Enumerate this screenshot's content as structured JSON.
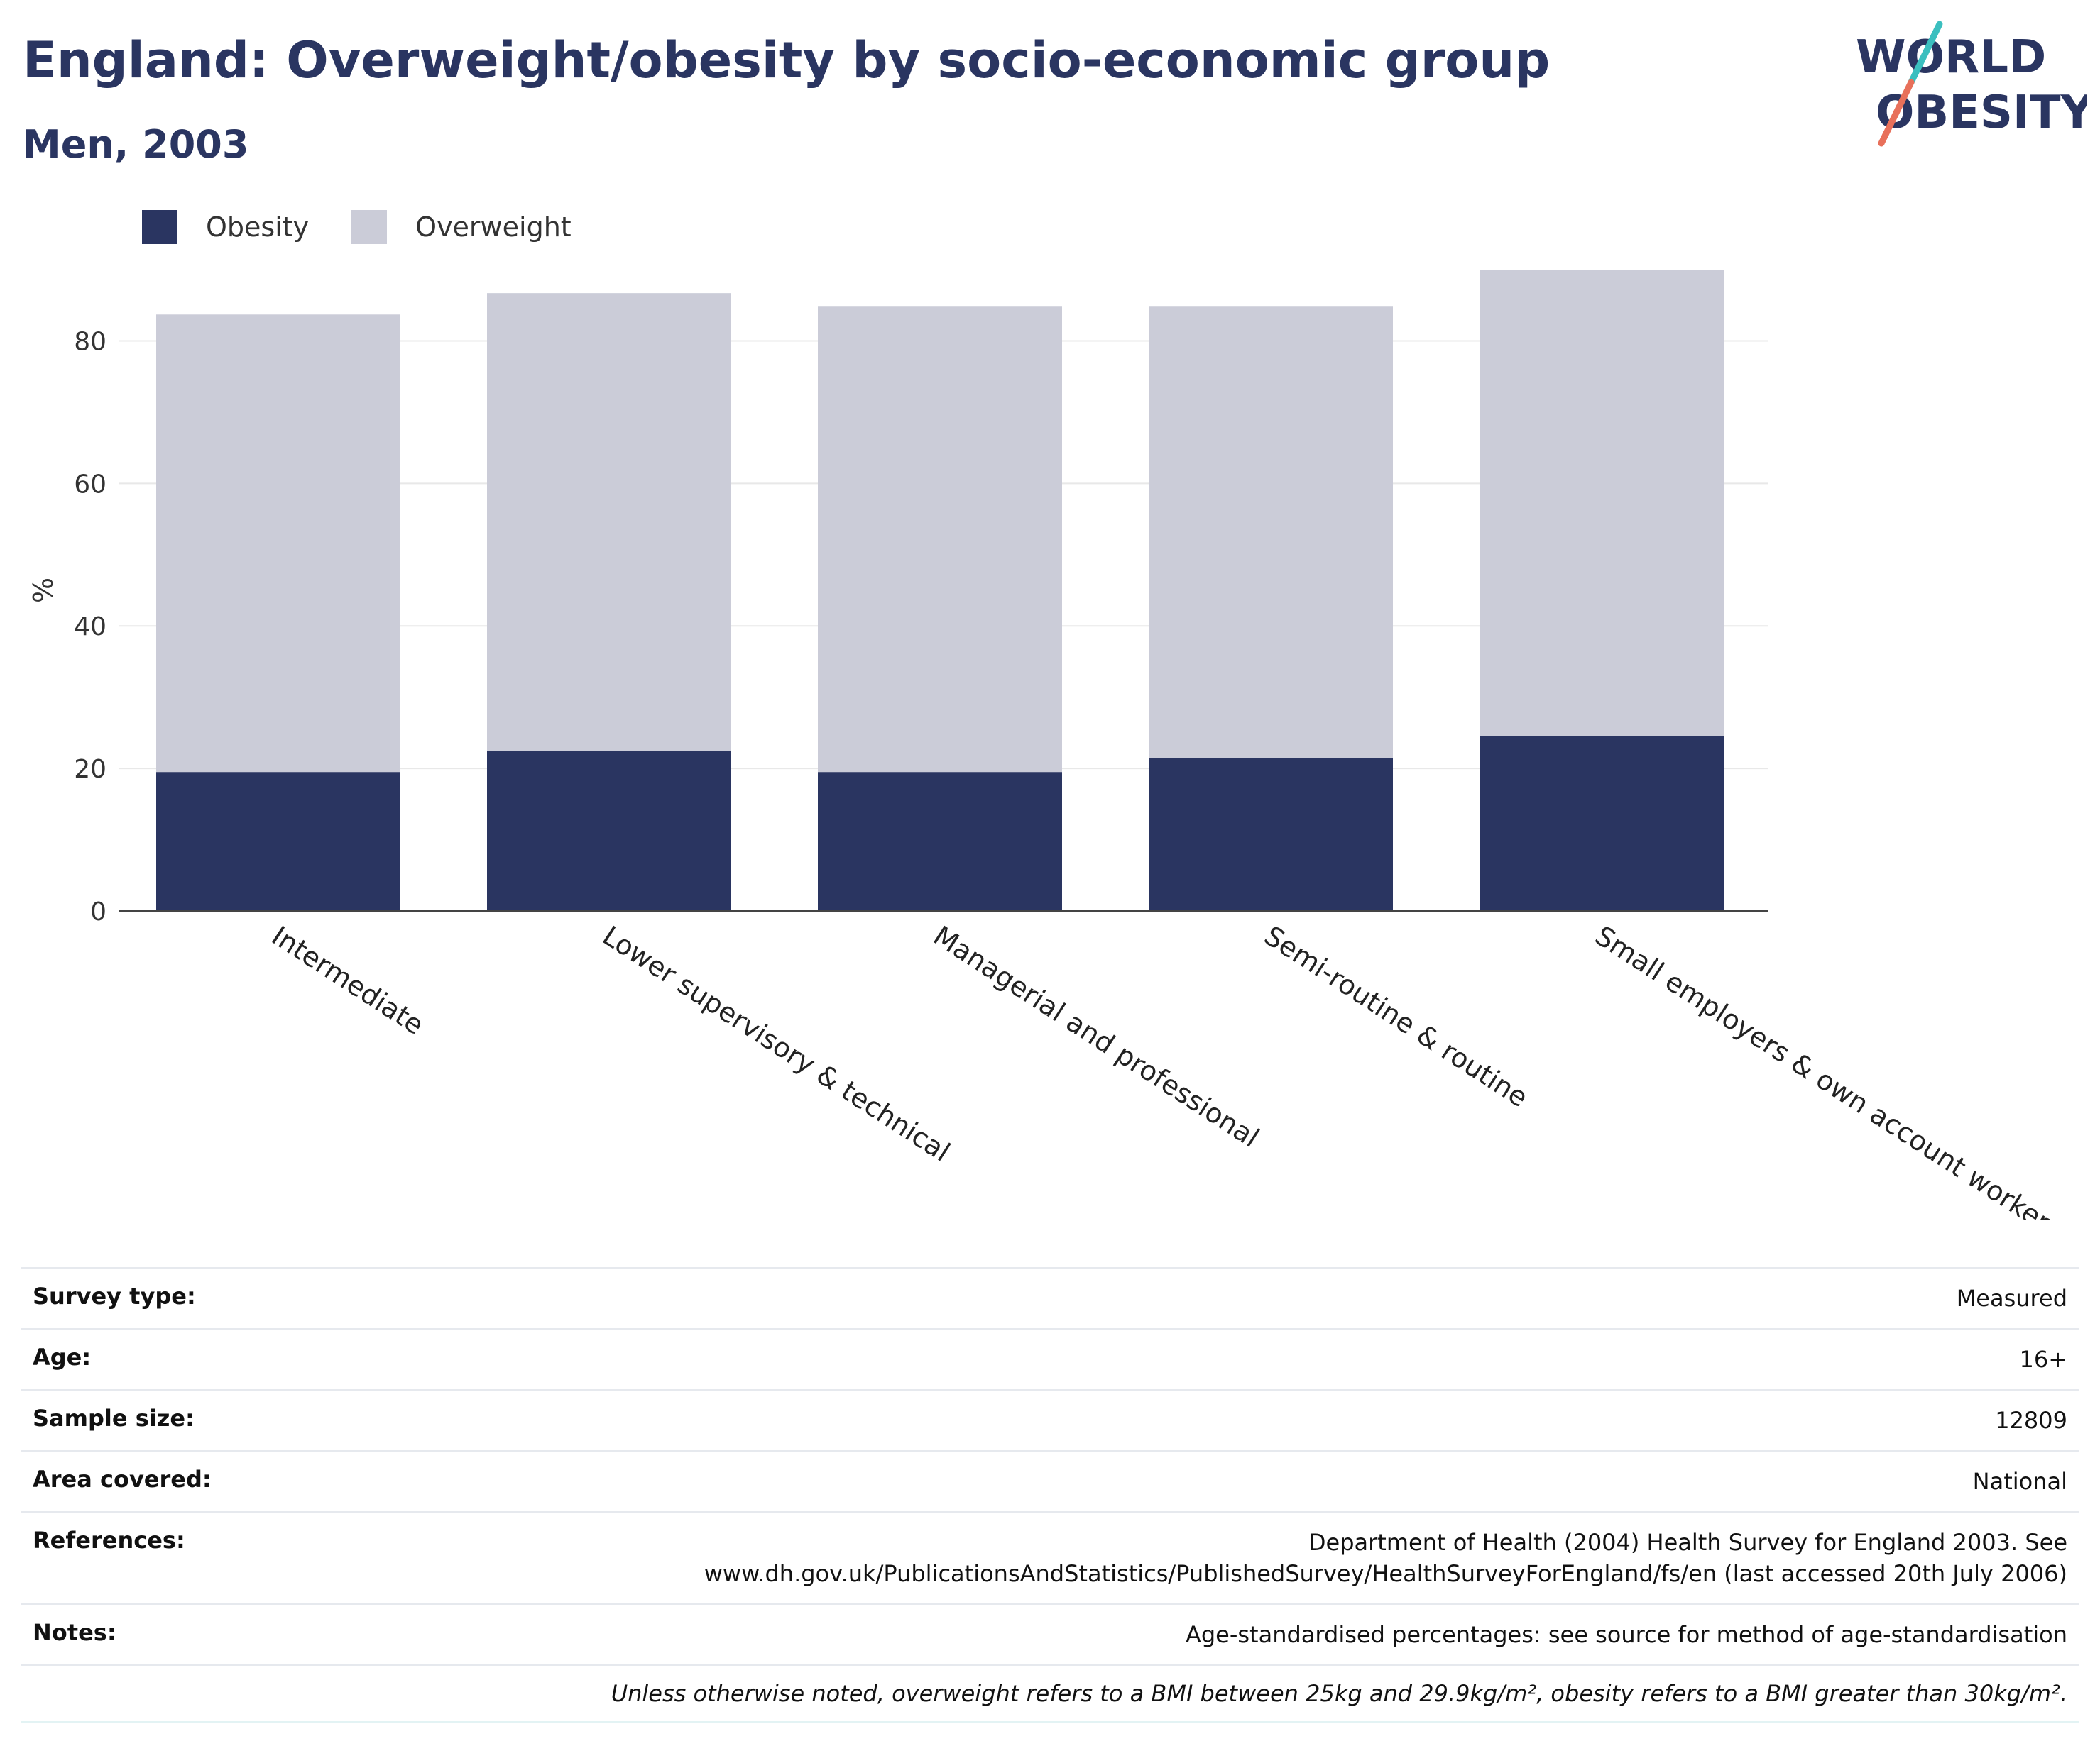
{
  "header": {
    "title": "England: Overweight/obesity by socio-economic group",
    "subtitle": "Men, 2003"
  },
  "logo": {
    "line1": "WORLD",
    "line2": "OBESITY",
    "colors": {
      "text": "#2a3561",
      "slash_top": "#3bbfbf",
      "slash_bottom": "#e8705a"
    }
  },
  "colors": {
    "obesity": "#2a3561",
    "overweight": "#cbccd8",
    "grid": "#e8e8e8",
    "axis": "#444444"
  },
  "chart_data": {
    "type": "bar",
    "stacked": true,
    "categories": [
      "Intermediate",
      "Lower supervisory & technical",
      "Managerial and professional",
      "Semi-routine & routine",
      "Small employers & own account workers"
    ],
    "series": [
      {
        "name": "Obesity",
        "values": [
          19.5,
          22.5,
          19.5,
          21.5,
          24.5
        ]
      },
      {
        "name": "Overweight",
        "values": [
          64.2,
          64.2,
          65.3,
          63.3,
          66.2
        ]
      }
    ],
    "ylabel": "%",
    "ylim": [
      0,
      90
    ],
    "yticks": [
      "0",
      "20",
      "40",
      "60",
      "80"
    ],
    "legend": "top-left",
    "grid": true
  },
  "info": {
    "rows": [
      {
        "label": "Survey type:",
        "value": "Measured"
      },
      {
        "label": "Age:",
        "value": "16+"
      },
      {
        "label": "Sample size:",
        "value": "12809"
      },
      {
        "label": "Area covered:",
        "value": "National"
      },
      {
        "label": "References:",
        "value": "Department of Health (2004) Health Survey for England 2003. See",
        "value2": "www.dh.gov.uk/PublicationsAndStatistics/PublishedSurvey/HealthSurveyForEngland/fs/en (last accessed 20th July 2006)"
      },
      {
        "label": "Notes:",
        "value": "Age-standardised percentages: see source for method of age-standardisation"
      }
    ],
    "footnote": "Unless otherwise noted, overweight refers to a BMI between 25kg and 29.9kg/m², obesity refers to a BMI greater than 30kg/m²."
  }
}
